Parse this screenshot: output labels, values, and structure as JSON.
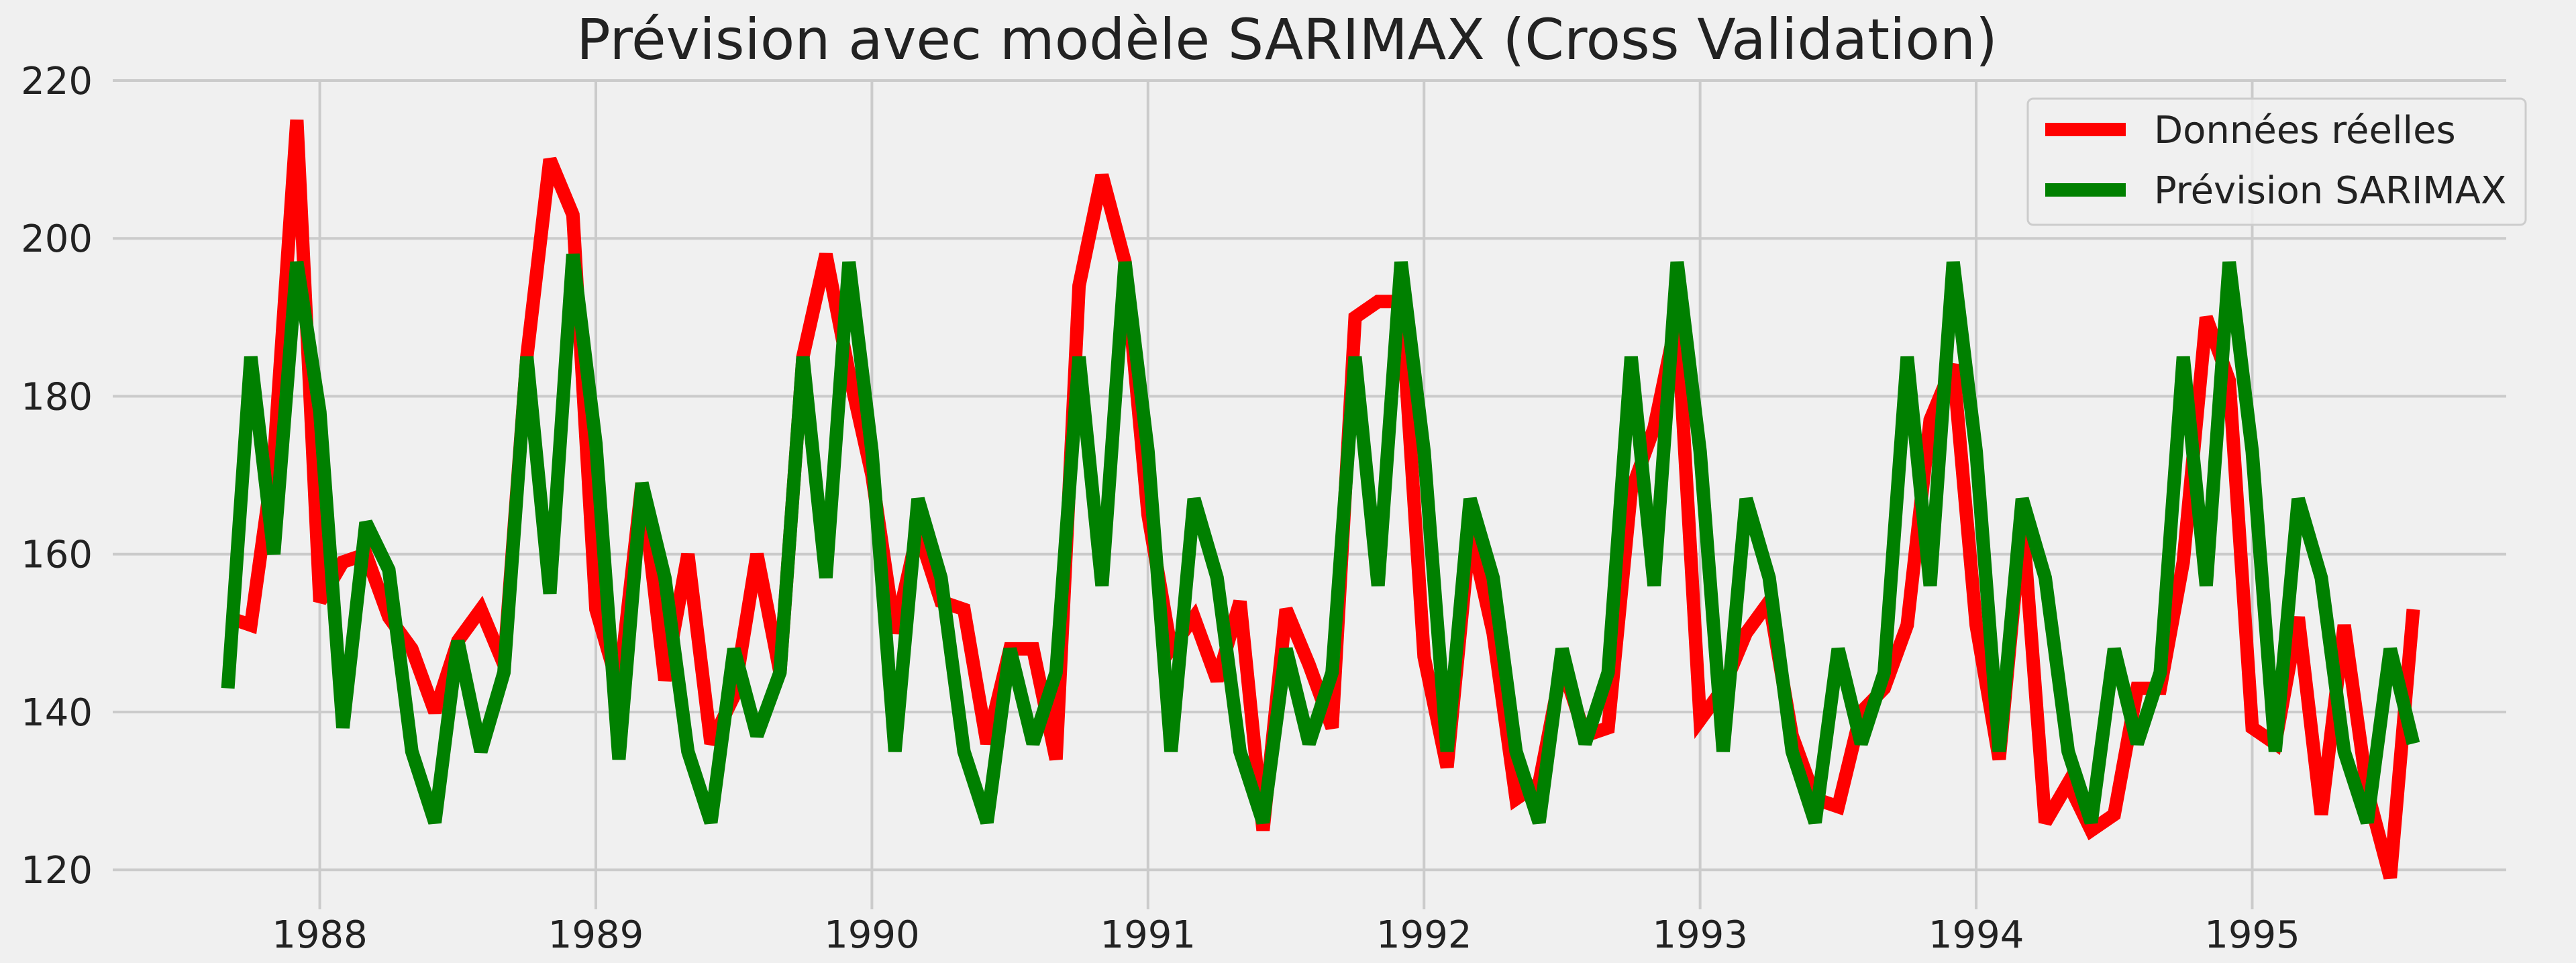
{
  "chart_data": {
    "type": "line",
    "title": "Prévision avec modèle SARIMAX (Cross Validation)",
    "xlabel": "",
    "ylabel": "",
    "x_start": 1987.667,
    "x_step": 0.08333,
    "xlim": [
      1987.25,
      1995.92
    ],
    "ylim": [
      115,
      220
    ],
    "x_ticks": [
      1988,
      1989,
      1990,
      1991,
      1992,
      1993,
      1994,
      1995
    ],
    "x_tick_labels": [
      "1988",
      "1989",
      "1990",
      "1991",
      "1992",
      "1993",
      "1994",
      "1995"
    ],
    "y_ticks": [
      120,
      140,
      160,
      180,
      200,
      220
    ],
    "y_tick_labels": [
      "120",
      "140",
      "160",
      "180",
      "200",
      "220"
    ],
    "grid": true,
    "legend_position": "top-right",
    "series": [
      {
        "name": "Données réelles",
        "color": "#ff0000",
        "values": [
          152,
          151,
          172,
          215,
          154,
          159,
          160,
          152,
          148,
          140,
          149,
          153,
          146,
          185,
          210,
          203,
          153,
          143,
          169,
          144,
          160,
          136,
          142,
          160,
          145,
          185,
          198,
          183,
          170,
          150,
          163,
          154,
          153,
          136,
          148,
          148,
          134,
          194,
          208,
          197,
          165,
          148,
          152,
          144,
          154,
          125,
          153,
          146,
          138,
          190,
          192,
          192,
          147,
          133,
          163,
          150,
          129,
          131,
          146,
          137,
          138,
          168,
          176,
          190,
          139,
          143,
          150,
          154,
          137,
          129,
          128,
          140,
          143,
          151,
          177,
          184,
          151,
          134,
          165,
          126,
          131,
          125,
          127,
          143,
          143,
          159,
          190,
          182,
          138,
          136,
          152,
          127,
          151,
          130,
          119,
          153
        ]
      },
      {
        "name": "Prévision SARIMAX",
        "color": "#008000",
        "values": [
          143,
          185,
          160,
          197,
          178,
          138,
          164,
          158,
          135,
          126,
          149,
          135,
          145,
          185,
          155,
          198,
          174,
          134,
          169,
          157,
          135,
          126,
          148,
          137,
          145,
          185,
          157,
          197,
          173,
          135,
          167,
          157,
          135,
          126,
          148,
          136,
          145,
          185,
          156,
          197,
          173,
          135,
          167,
          157,
          135,
          126,
          148,
          136,
          145,
          185,
          156,
          197,
          173,
          135,
          167,
          157,
          135,
          126,
          148,
          136,
          145,
          185,
          156,
          197,
          173,
          135,
          167,
          157,
          135,
          126,
          148,
          136,
          145,
          185,
          156,
          197,
          173,
          135,
          167,
          157,
          135,
          126,
          148,
          136,
          145,
          185,
          156,
          197,
          173,
          135,
          167,
          157,
          135,
          126,
          148,
          136
        ]
      }
    ]
  }
}
